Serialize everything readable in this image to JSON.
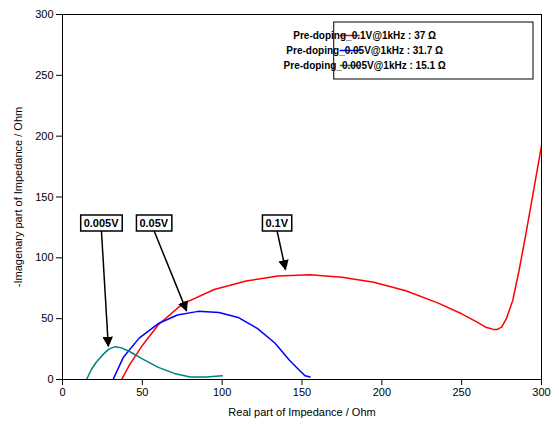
{
  "chart_data": {
    "type": "line",
    "title": "",
    "xlabel": "Real part of Impedance / Ohm",
    "ylabel": "-Imagenary part of Impedance / Ohm",
    "xlim": [
      0,
      300
    ],
    "ylim": [
      0,
      300
    ],
    "xticks": [
      0,
      50,
      100,
      150,
      200,
      250,
      300
    ],
    "yticks": [
      0,
      50,
      100,
      150,
      200,
      250,
      300
    ],
    "grid": false,
    "legend": "upper right",
    "series": [
      {
        "name": "Pre-doping_0.1V@1kHz : 37 Ω",
        "color": "#ff0000",
        "x": [
          37,
          42,
          50,
          60,
          75,
          95,
          115,
          135,
          155,
          175,
          195,
          215,
          235,
          250,
          260,
          265,
          268,
          270,
          272,
          275,
          278,
          282,
          286,
          290,
          295,
          300
        ],
        "values": [
          0,
          12,
          28,
          45,
          62,
          74,
          81,
          85,
          86,
          84,
          80,
          73,
          63,
          54,
          47,
          43,
          42,
          41,
          41,
          43,
          50,
          65,
          90,
          118,
          155,
          192
        ]
      },
      {
        "name": "Pre-doping_0.05V@1kHz : 31.7 Ω",
        "color": "#0000ff",
        "x": [
          31.7,
          38,
          48,
          60,
          72,
          85,
          98,
          110,
          122,
          133,
          142,
          148,
          152,
          155
        ],
        "values": [
          0,
          18,
          34,
          46,
          53,
          56,
          55,
          51,
          42,
          30,
          16,
          8,
          3,
          2
        ]
      },
      {
        "name": "Pre-doping_0.005V@1kHz : 15.1 Ω",
        "color": "#008080",
        "x": [
          15.1,
          18,
          21,
          25,
          29,
          33,
          37,
          42,
          50,
          60,
          70,
          80,
          90,
          100
        ],
        "values": [
          0,
          8,
          14,
          20,
          25,
          27,
          26,
          23,
          17,
          10,
          5,
          2,
          2,
          3
        ]
      }
    ],
    "annotations": [
      {
        "text": "0.005V",
        "x": 22,
        "y": 120,
        "arrow_x": 29,
        "arrow_y": 27
      },
      {
        "text": "0.05V",
        "x": 55,
        "y": 120,
        "arrow_x": 78,
        "arrow_y": 56
      },
      {
        "text": "0.1V",
        "x": 132,
        "y": 120,
        "arrow_x": 140,
        "arrow_y": 90
      }
    ]
  }
}
